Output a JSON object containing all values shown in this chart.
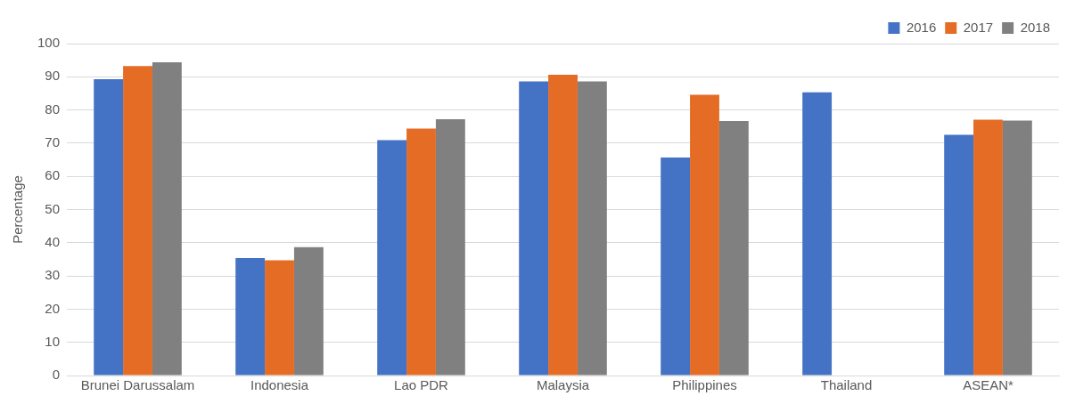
{
  "chart_data": {
    "type": "bar",
    "ylabel": "Percentage",
    "categories": [
      "Brunei Darussalam",
      "Indonesia",
      "Lao PDR",
      "Malaysia",
      "Philippines",
      "Thailand",
      "ASEAN*"
    ],
    "series": [
      {
        "name": "2016",
        "color": "#4472c4",
        "values": [
          89.3,
          35.4,
          70.9,
          88.6,
          65.7,
          85.3,
          72.5
        ]
      },
      {
        "name": "2017",
        "color": "#e46c25",
        "values": [
          93.2,
          34.7,
          74.4,
          90.6,
          84.6,
          null,
          77.1
        ]
      },
      {
        "name": "2018",
        "color": "#808080",
        "values": [
          94.4,
          38.7,
          77.2,
          88.6,
          76.7,
          null,
          76.8
        ]
      }
    ],
    "ylim": [
      0,
      100
    ],
    "yticks": [
      0,
      10,
      20,
      30,
      40,
      50,
      60,
      70,
      80,
      90,
      100
    ],
    "grid": "y",
    "legend": "top right"
  }
}
